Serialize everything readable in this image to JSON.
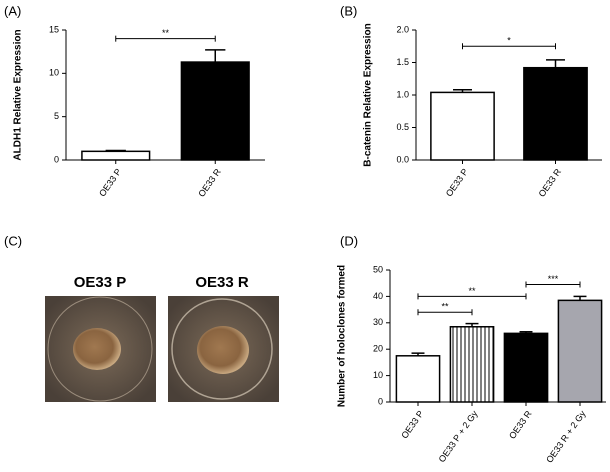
{
  "chart_data": [
    {
      "type": "bar",
      "label": "(A)",
      "y_label": "ALDH1 Relative Expression",
      "categories": [
        "OE33 P",
        "OE33 R"
      ],
      "values": [
        1.0,
        11.3
      ],
      "errors": [
        0.1,
        1.4
      ],
      "colors": [
        "#ffffff",
        "#000000"
      ],
      "hatch": [
        false,
        false
      ],
      "ylim": [
        0,
        15
      ],
      "yticks": [
        0,
        5,
        10,
        15
      ],
      "annotations": [
        {
          "text": "**",
          "between": [
            0,
            1
          ],
          "y": 14
        }
      ]
    },
    {
      "type": "bar",
      "label": "(B)",
      "y_label": "B-catenin Relative Expression",
      "categories": [
        "OE33 P",
        "OE33 R"
      ],
      "values": [
        1.04,
        1.42
      ],
      "errors": [
        0.04,
        0.12
      ],
      "colors": [
        "#ffffff",
        "#000000"
      ],
      "hatch": [
        false,
        false
      ],
      "ylim": [
        0,
        2.0
      ],
      "yticks": [
        {
          "value": 0,
          "label": "0.0"
        },
        {
          "value": 0.5,
          "label": "0.5"
        },
        {
          "value": 1,
          "label": "1.0"
        },
        {
          "value": 1.5,
          "label": "1.5"
        },
        {
          "value": 2,
          "label": "2.0"
        }
      ],
      "annotations": [
        {
          "text": "*",
          "between": [
            0,
            1
          ],
          "y": 1.75
        }
      ]
    },
    {
      "type": "bar",
      "label": "(D)",
      "y_label": "Number of holoclones formed",
      "categories": [
        "OE33 P",
        "OE33 P + 2 Gy",
        "OE33 R",
        "OE33 R + 2 Gy"
      ],
      "values": [
        17.5,
        28.5,
        26,
        38.5
      ],
      "errors": [
        1,
        1.2,
        0.6,
        1.5
      ],
      "colors": [
        "#ffffff",
        "#ffffff",
        "#000000",
        "#a6a6ae"
      ],
      "hatch": [
        false,
        true,
        false,
        false
      ],
      "ylim": [
        0,
        50
      ],
      "yticks": [
        0,
        10,
        20,
        30,
        40,
        50
      ],
      "annotations": [
        {
          "text": "**",
          "between": [
            0,
            1
          ],
          "y": 34
        },
        {
          "text": "**",
          "between": [
            0,
            2
          ],
          "y": 40
        },
        {
          "text": "***",
          "between": [
            2,
            3
          ],
          "y": 44.5
        }
      ]
    }
  ],
  "panel_c": {
    "label": "(C)",
    "images": [
      "OE33 P",
      "OE33 R"
    ]
  }
}
